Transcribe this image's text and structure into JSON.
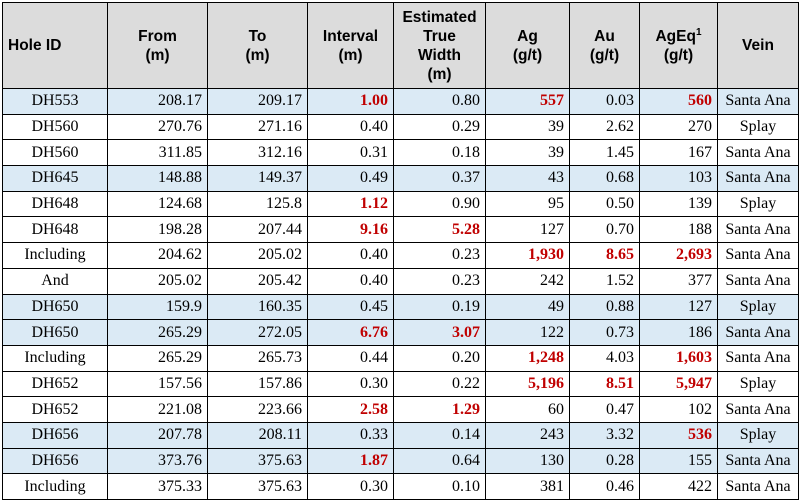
{
  "headers": {
    "hole_id": "Hole ID",
    "from": [
      "From",
      "(m)"
    ],
    "to": [
      "To",
      "(m)"
    ],
    "interval": [
      "Interval",
      "(m)"
    ],
    "etw": [
      "Estimated",
      "True",
      "Width",
      "(m)"
    ],
    "ag": [
      "Ag",
      "(g/t)"
    ],
    "au": [
      "Au",
      "(g/t)"
    ],
    "ageq": [
      "AgEq",
      "1",
      "(g/t)"
    ],
    "vein": "Vein"
  },
  "rows": [
    {
      "hole": "DH553",
      "from": "208.17",
      "to": "209.17",
      "interval": "1.00",
      "etw": "0.80",
      "ag": "557",
      "au": "0.03",
      "ageq": "560",
      "vein": "Santa Ana"
    },
    {
      "hole": "DH560",
      "from": "270.76",
      "to": "271.16",
      "interval": "0.40",
      "etw": "0.29",
      "ag": "39",
      "au": "2.62",
      "ageq": "270",
      "vein": "Splay"
    },
    {
      "hole": "DH560",
      "from": "311.85",
      "to": "312.16",
      "interval": "0.31",
      "etw": "0.18",
      "ag": "39",
      "au": "1.45",
      "ageq": "167",
      "vein": "Santa Ana"
    },
    {
      "hole": "DH645",
      "from": "148.88",
      "to": "149.37",
      "interval": "0.49",
      "etw": "0.37",
      "ag": "43",
      "au": "0.68",
      "ageq": "103",
      "vein": "Santa Ana"
    },
    {
      "hole": "DH648",
      "from": "124.68",
      "to": "125.8",
      "interval": "1.12",
      "etw": "0.90",
      "ag": "95",
      "au": "0.50",
      "ageq": "139",
      "vein": "Splay"
    },
    {
      "hole": "DH648",
      "from": "198.28",
      "to": "207.44",
      "interval": "9.16",
      "etw": "5.28",
      "ag": "127",
      "au": "0.70",
      "ageq": "188",
      "vein": "Santa Ana"
    },
    {
      "hole": "Including",
      "from": "204.62",
      "to": "205.02",
      "interval": "0.40",
      "etw": "0.23",
      "ag": "1,930",
      "au": "8.65",
      "ageq": "2,693",
      "vein": "Santa Ana"
    },
    {
      "hole": "And",
      "from": "205.02",
      "to": "205.42",
      "interval": "0.40",
      "etw": "0.23",
      "ag": "242",
      "au": "1.52",
      "ageq": "377",
      "vein": "Santa Ana"
    },
    {
      "hole": "DH650",
      "from": "159.9",
      "to": "160.35",
      "interval": "0.45",
      "etw": "0.19",
      "ag": "49",
      "au": "0.88",
      "ageq": "127",
      "vein": "Splay"
    },
    {
      "hole": "DH650",
      "from": "265.29",
      "to": "272.05",
      "interval": "6.76",
      "etw": "3.07",
      "ag": "122",
      "au": "0.73",
      "ageq": "186",
      "vein": "Santa Ana"
    },
    {
      "hole": "Including",
      "from": "265.29",
      "to": "265.73",
      "interval": "0.44",
      "etw": "0.20",
      "ag": "1,248",
      "au": "4.03",
      "ageq": "1,603",
      "vein": "Santa Ana"
    },
    {
      "hole": "DH652",
      "from": "157.56",
      "to": "157.86",
      "interval": "0.30",
      "etw": "0.22",
      "ag": "5,196",
      "au": "8.51",
      "ageq": "5,947",
      "vein": "Splay"
    },
    {
      "hole": "DH652",
      "from": "221.08",
      "to": "223.66",
      "interval": "2.58",
      "etw": "1.29",
      "ag": "60",
      "au": "0.47",
      "ageq": "102",
      "vein": "Santa Ana"
    },
    {
      "hole": "DH656",
      "from": "207.78",
      "to": "208.11",
      "interval": "0.33",
      "etw": "0.14",
      "ag": "243",
      "au": "3.32",
      "ageq": "536",
      "vein": "Splay"
    },
    {
      "hole": "DH656",
      "from": "373.76",
      "to": "375.63",
      "interval": "1.87",
      "etw": "0.64",
      "ag": "130",
      "au": "0.28",
      "ageq": "155",
      "vein": "Santa Ana"
    },
    {
      "hole": "Including",
      "from": "375.33",
      "to": "375.63",
      "interval": "0.30",
      "etw": "0.10",
      "ag": "381",
      "au": "0.46",
      "ageq": "422",
      "vein": "Santa Ana"
    }
  ],
  "style": {
    "header_bg": "#dcdcdc",
    "highlight_row_bg": "#dbeaf5",
    "emphasis_text": "#c00000"
  }
}
